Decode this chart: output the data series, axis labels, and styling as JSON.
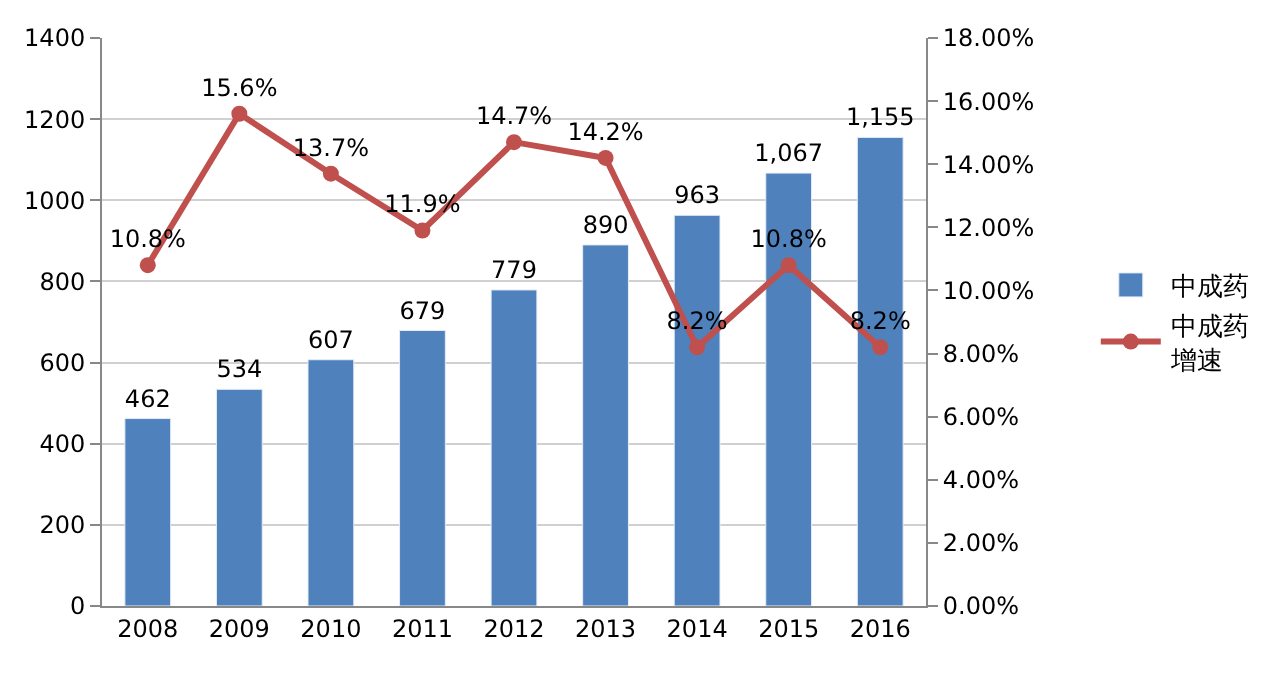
{
  "chart_data": {
    "type": "bar",
    "categories": [
      "2008",
      "2009",
      "2010",
      "2011",
      "2012",
      "2013",
      "2014",
      "2015",
      "2016"
    ],
    "series": [
      {
        "name": "中成药",
        "color": "#4f81bd",
        "values": [
          462,
          534,
          607,
          679,
          779,
          890,
          963,
          1067,
          1155
        ],
        "value_labels": [
          "462",
          "534",
          "607",
          "679",
          "779",
          "890",
          "963",
          "1,067",
          "1,155"
        ]
      },
      {
        "name": "中成药增速",
        "type": "line",
        "axis": "y2",
        "color": "#c0504d",
        "marker": "circle",
        "values": [
          10.8,
          15.6,
          13.7,
          11.9,
          14.7,
          14.2,
          8.2,
          10.8,
          8.2
        ],
        "value_labels": [
          "10.8%",
          "15.6%",
          "13.7%",
          "11.9%",
          "14.7%",
          "14.2%",
          "8.2%",
          "10.8%",
          "8.2%"
        ]
      }
    ],
    "ylim": [
      0,
      1400
    ],
    "yticks": [
      0,
      200,
      400,
      600,
      800,
      1000,
      1200,
      1400
    ],
    "y2lim": [
      0,
      18
    ],
    "y2ticks": [
      {
        "value": 0,
        "label": "0.00%"
      },
      {
        "value": 2,
        "label": "2.00%"
      },
      {
        "value": 4,
        "label": "4.00%"
      },
      {
        "value": 6,
        "label": "6.00%"
      },
      {
        "value": 8,
        "label": "8.00%"
      },
      {
        "value": 10,
        "label": "10.00%"
      },
      {
        "value": 12,
        "label": "12.00%"
      },
      {
        "value": 14,
        "label": "14.00%"
      },
      {
        "value": 16,
        "label": "16.00%"
      },
      {
        "value": 18,
        "label": "18.00%"
      }
    ],
    "grid": "y",
    "legend": "right"
  }
}
